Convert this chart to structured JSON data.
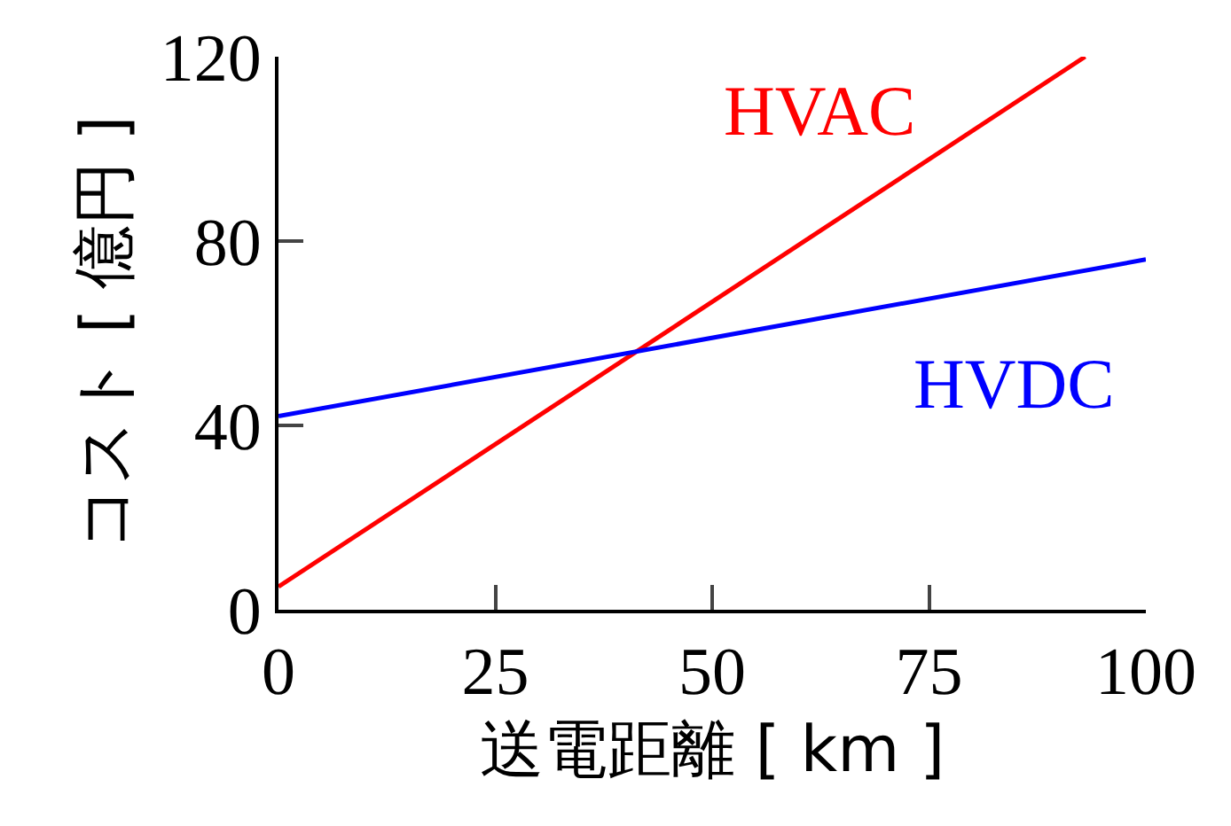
{
  "chart_data": {
    "type": "line",
    "xlabel": "送電距離 [ km ]",
    "ylabel": "コスト [ 億円 ]",
    "xlim": [
      0,
      100
    ],
    "xticks": [
      0,
      25,
      50,
      75,
      100
    ],
    "ylim": [
      0,
      120
    ],
    "yticks": [
      0,
      40,
      80,
      120
    ],
    "legend": false,
    "series": [
      {
        "name": "HVAC",
        "color": "#ff0000",
        "x": [
          0,
          93
        ],
        "values": [
          5,
          120
        ]
      },
      {
        "name": "HVDC",
        "color": "#0000ff",
        "x": [
          0,
          100
        ],
        "values": [
          42,
          76
        ]
      }
    ]
  }
}
